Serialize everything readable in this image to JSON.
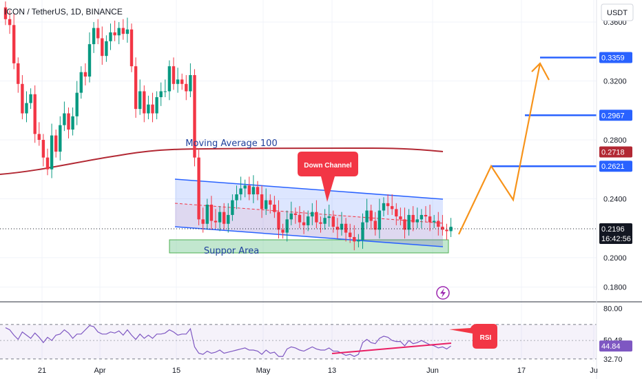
{
  "header": {
    "symbol": "ICON / TetherUS, 1D, BINANCE"
  },
  "currency_button": "USDT",
  "colors": {
    "up": "#089981",
    "down": "#f23645",
    "ma": "#b22833",
    "channel": "#2962ff",
    "projection": "#f7931a",
    "rsi": "#7e57c2",
    "rsi_trend": "#e91e63",
    "price_tag": "#131722",
    "level_tag": "#2962ff",
    "ma_tag": "#b22833"
  },
  "chart_data": {
    "type": "candlestick",
    "price_axis": {
      "min": 0.17,
      "max": 0.375,
      "ticks": [
        "0.3600",
        "0.3200",
        "0.2800",
        "0.2400",
        "0.2000",
        "0.1800"
      ]
    },
    "time_axis": {
      "labels": [
        "21",
        "Apr",
        "15",
        "May",
        "13",
        "Jun",
        "17",
        "Ju"
      ]
    },
    "series_close": [
      0.362,
      0.358,
      0.332,
      0.318,
      0.298,
      0.305,
      0.311,
      0.284,
      0.28,
      0.268,
      0.26,
      0.283,
      0.272,
      0.29,
      0.298,
      0.287,
      0.296,
      0.312,
      0.326,
      0.323,
      0.345,
      0.356,
      0.349,
      0.337,
      0.347,
      0.353,
      0.351,
      0.356,
      0.352,
      0.355,
      0.33,
      0.301,
      0.313,
      0.298,
      0.304,
      0.298,
      0.309,
      0.313,
      0.313,
      0.33,
      0.318,
      0.321,
      0.318,
      0.313,
      0.324,
      0.268,
      0.226,
      0.223,
      0.236,
      0.225,
      0.224,
      0.231,
      0.223,
      0.229,
      0.239,
      0.243,
      0.247,
      0.249,
      0.243,
      0.248,
      0.243,
      0.233,
      0.239,
      0.236,
      0.231,
      0.219,
      0.217,
      0.226,
      0.23,
      0.229,
      0.224,
      0.222,
      0.228,
      0.231,
      0.224,
      0.223,
      0.227,
      0.228,
      0.221,
      0.219,
      0.223,
      0.217,
      0.214,
      0.211,
      0.212,
      0.224,
      0.232,
      0.225,
      0.219,
      0.232,
      0.237,
      0.235,
      0.233,
      0.228,
      0.226,
      0.219,
      0.229,
      0.224,
      0.226,
      0.229,
      0.228,
      0.224,
      0.225,
      0.221,
      0.219,
      0.218,
      0.221
    ],
    "annotations": {
      "moving_average_label": "Moving Average 100",
      "down_channel_label": "Down Channel",
      "support_label": "Suppor Area",
      "rsi_label": "RSI"
    },
    "levels": [
      {
        "name": "target-3",
        "value": 0.3359,
        "label": "0.3359"
      },
      {
        "name": "target-2",
        "value": 0.2967,
        "label": "0.2967"
      },
      {
        "name": "target-1",
        "value": 0.2621,
        "label": "0.2621"
      }
    ],
    "ma_value": {
      "value": 0.2718,
      "label": "0.2718"
    },
    "current": {
      "value": 0.2196,
      "label": "0.2196",
      "countdown": "16:42:56"
    },
    "rsi": {
      "axis": {
        "min": 30,
        "max": 85,
        "ticks": [
          "80.00",
          "50.48",
          "32.70"
        ]
      },
      "current_label": "44.84",
      "current": 44.84,
      "upper": 65,
      "lower": 32.7,
      "values": [
        62,
        60,
        55,
        51,
        58,
        55,
        52,
        57,
        53,
        48,
        53,
        50,
        55,
        56,
        60,
        57,
        52,
        56,
        56,
        60,
        64,
        63,
        58,
        56,
        56,
        58,
        57,
        59,
        55,
        60,
        55,
        51,
        56,
        52,
        55,
        52,
        56,
        56,
        57,
        60,
        58,
        55,
        56,
        56,
        61,
        44,
        38,
        37,
        40,
        38,
        39,
        41,
        38,
        39,
        40,
        41,
        42,
        43,
        41,
        41,
        40,
        37,
        41,
        38,
        39,
        35,
        35,
        42,
        44,
        43,
        41,
        40,
        42,
        44,
        42,
        41,
        41,
        43,
        40,
        40,
        38,
        36,
        37,
        35,
        37,
        48,
        51,
        48,
        47,
        52,
        54,
        53,
        50,
        49,
        49,
        45,
        50,
        47,
        48,
        50,
        48,
        46,
        45,
        43,
        44,
        42,
        44.84
      ]
    }
  }
}
